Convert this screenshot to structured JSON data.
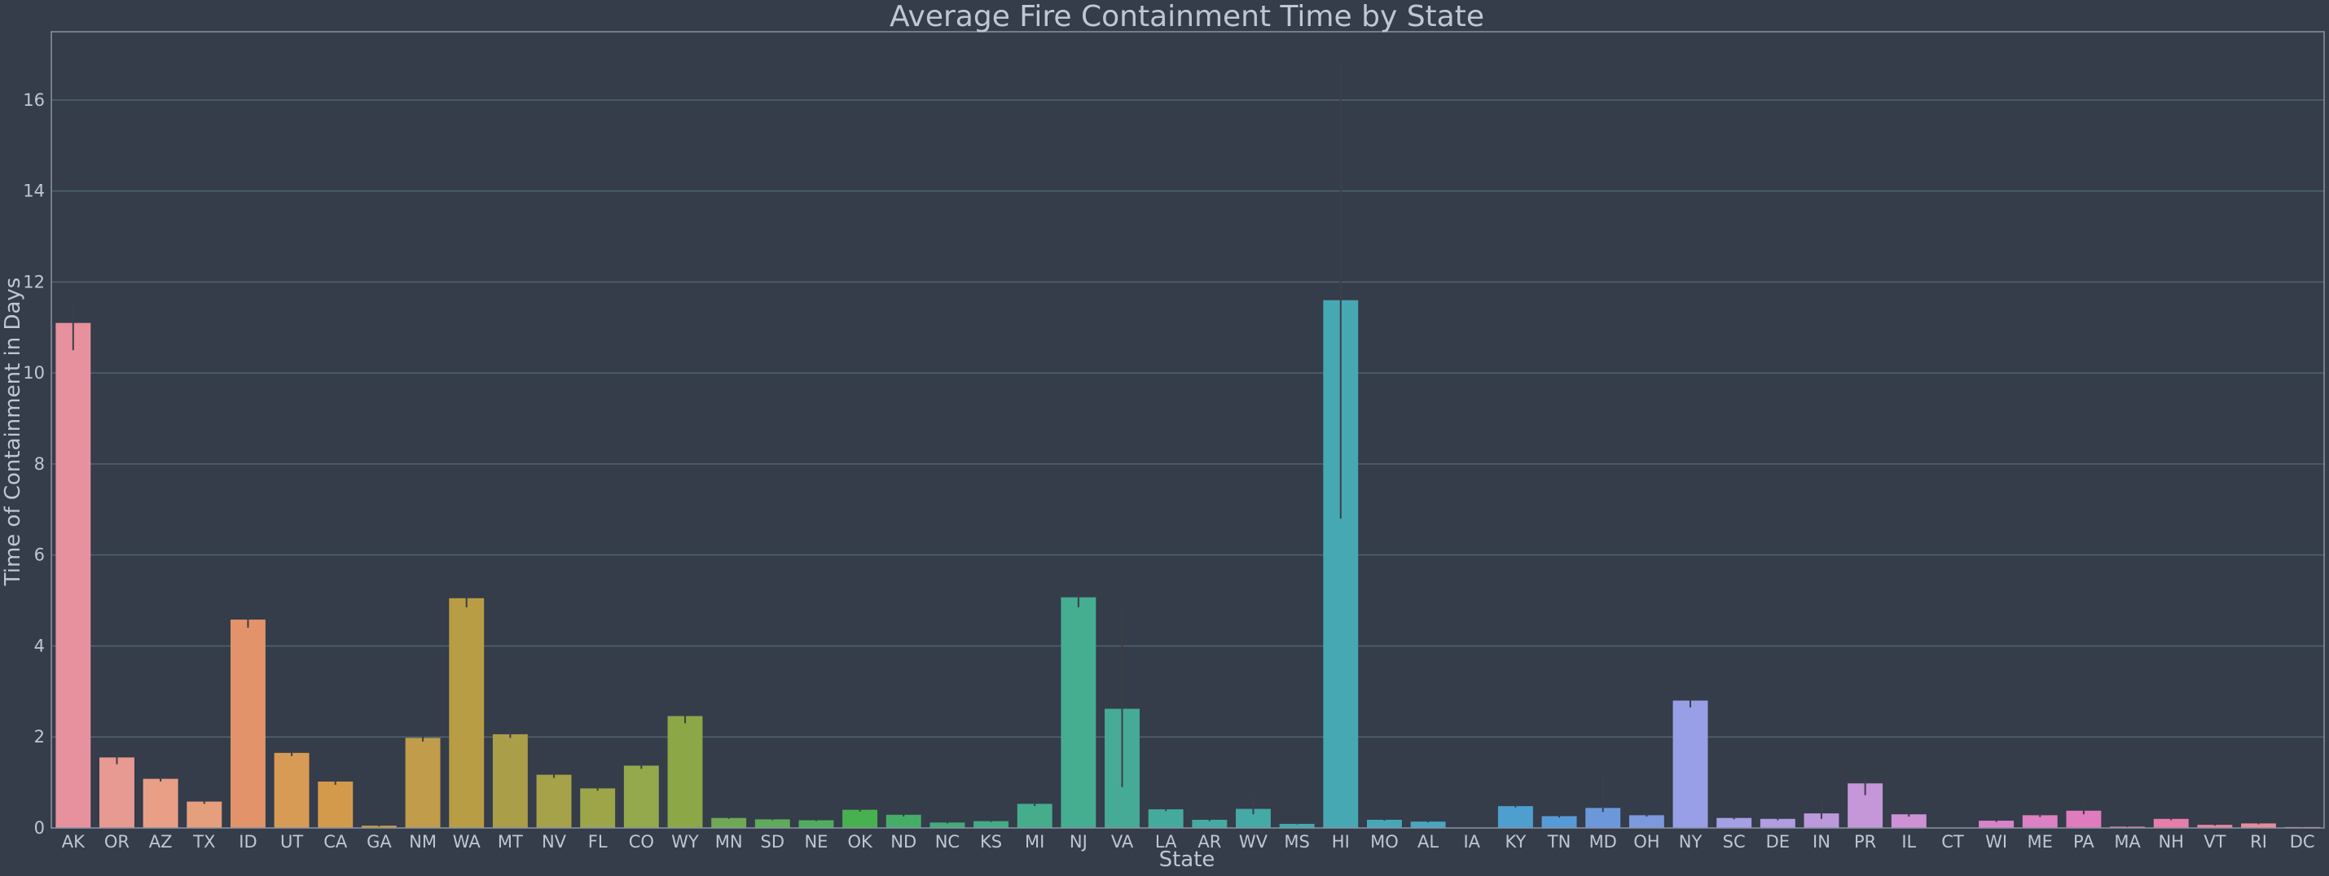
{
  "chart_data": {
    "type": "bar",
    "title": "Average Fire Containment Time by State",
    "xlabel": "State",
    "ylabel": "Time of Containment in Days",
    "ylim": [
      0,
      17.5
    ],
    "yticks": [
      0,
      2,
      4,
      6,
      8,
      10,
      12,
      14,
      16
    ],
    "grid": true,
    "categories": [
      "AK",
      "OR",
      "AZ",
      "TX",
      "ID",
      "UT",
      "CA",
      "GA",
      "NM",
      "WA",
      "MT",
      "NV",
      "FL",
      "CO",
      "WY",
      "MN",
      "SD",
      "NE",
      "OK",
      "ND",
      "NC",
      "KS",
      "MI",
      "NJ",
      "VA",
      "LA",
      "AR",
      "WV",
      "MS",
      "HI",
      "MO",
      "AL",
      "IA",
      "KY",
      "TN",
      "MD",
      "OH",
      "NY",
      "SC",
      "DE",
      "IN",
      "PR",
      "IL",
      "CT",
      "WI",
      "ME",
      "PA",
      "MA",
      "NH",
      "VT",
      "RI",
      "DC"
    ],
    "values": [
      11.1,
      1.55,
      1.08,
      0.58,
      4.58,
      1.65,
      1.02,
      0.05,
      1.98,
      5.05,
      2.06,
      1.17,
      0.87,
      1.37,
      2.46,
      0.22,
      0.19,
      0.17,
      0.4,
      0.29,
      0.12,
      0.15,
      0.53,
      5.07,
      2.62,
      0.41,
      0.18,
      0.42,
      0.09,
      11.6,
      0.18,
      0.14,
      0.0,
      0.48,
      0.26,
      0.44,
      0.28,
      2.8,
      0.22,
      0.2,
      0.32,
      0.98,
      0.3,
      0.0,
      0.16,
      0.28,
      0.38,
      0.03,
      0.2,
      0.07,
      0.1,
      0.02
    ],
    "error_low": [
      10.5,
      1.4,
      1.02,
      0.53,
      4.4,
      1.58,
      0.95,
      0.03,
      1.9,
      4.85,
      1.98,
      1.1,
      0.82,
      1.3,
      2.3,
      0.2,
      0.17,
      0.15,
      0.36,
      0.25,
      0.1,
      0.13,
      0.48,
      4.85,
      0.9,
      0.37,
      0.15,
      0.3,
      0.08,
      6.8,
      0.16,
      0.12,
      0.0,
      0.45,
      0.23,
      0.35,
      0.25,
      2.65,
      0.19,
      0.17,
      0.2,
      0.72,
      0.25,
      0.0,
      0.13,
      0.24,
      0.3,
      0.02,
      0.17,
      0.05,
      0.08,
      0.01
    ],
    "error_high": [
      11.5,
      1.7,
      1.14,
      0.64,
      4.75,
      1.72,
      1.1,
      0.07,
      2.06,
      5.2,
      2.14,
      1.24,
      0.92,
      1.44,
      2.6,
      0.25,
      0.21,
      0.19,
      0.44,
      0.33,
      0.14,
      0.17,
      0.58,
      5.15,
      4.8,
      0.45,
      0.21,
      0.7,
      0.1,
      16.8,
      0.2,
      0.16,
      0.0,
      0.52,
      0.29,
      1.2,
      0.31,
      2.95,
      0.25,
      0.23,
      0.6,
      1.12,
      0.35,
      0.0,
      0.19,
      0.32,
      0.7,
      0.04,
      0.23,
      0.09,
      0.12,
      0.03
    ],
    "colors": [
      "#e7919f",
      "#e79a92",
      "#e89f86",
      "#e59f7c",
      "#e2936a",
      "#d89b55",
      "#d49a4c",
      "#c99c45",
      "#c19c4a",
      "#b89d44",
      "#aa9f48",
      "#a5a249",
      "#9ca649",
      "#94a94c",
      "#8ba746",
      "#6fa956",
      "#5eab5b",
      "#4fae5e",
      "#48b14f",
      "#46ad68",
      "#43ab7a",
      "#43ab85",
      "#45ad8c",
      "#45ad90",
      "#45ab96",
      "#44ab9c",
      "#45aaa2",
      "#45a9a6",
      "#45a8ab",
      "#46a8b2",
      "#47a7b8",
      "#48a6be",
      "#4aa4c4",
      "#4e9fcf",
      "#569bd7",
      "#6a98db",
      "#7d99de",
      "#989fe6",
      "#a59fe4",
      "#b19de0",
      "#bb99dc",
      "#c596d8",
      "#ce91d4",
      "#d48bd0",
      "#d984ca",
      "#dd80c4",
      "#e07bbd",
      "#e27ab3",
      "#e57eaa",
      "#e685a2",
      "#e78b9b",
      "#e8909a"
    ]
  }
}
